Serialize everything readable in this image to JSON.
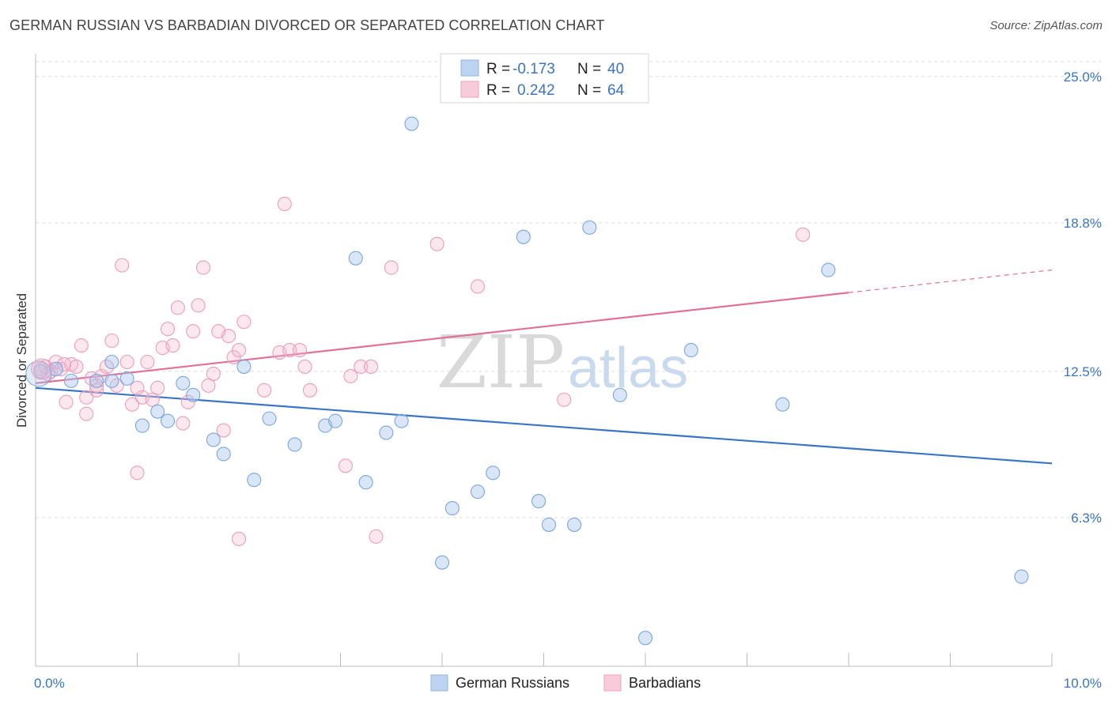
{
  "header": {
    "title": "GERMAN RUSSIAN VS BARBADIAN DIVORCED OR SEPARATED CORRELATION CHART",
    "source": "Source: ZipAtlas.com"
  },
  "watermark": {
    "zip": "ZIP",
    "atlas": "atlas"
  },
  "colors": {
    "blue": "#3a75c4",
    "blue_fill": "#a9c7ee",
    "pink": "#e0719a",
    "pink_fill": "#f4b9ce",
    "grid": "#dddddd"
  },
  "legend": {
    "rows": [
      {
        "r_label": "R =",
        "r_value": "-0.173",
        "n_label": "N =",
        "n_value": "40"
      },
      {
        "r_label": "R =",
        "r_value": "0.242",
        "n_label": "N =",
        "n_value": "64"
      }
    ]
  },
  "chart_data": {
    "type": "scatter",
    "title": "GERMAN RUSSIAN VS BARBADIAN DIVORCED OR SEPARATED CORRELATION CHART",
    "xlabel": "",
    "ylabel": "Divorced or Separated",
    "xlim": [
      0,
      10
    ],
    "ylim": [
      0,
      25.9
    ],
    "x_tick_labels": [
      "0.0%",
      "10.0%"
    ],
    "y_ticks": [
      6.3,
      12.5,
      18.8,
      25.0
    ],
    "y_tick_labels": [
      "6.3%",
      "12.5%",
      "18.8%",
      "25.0%"
    ],
    "grid": true,
    "legend_position": "top-center",
    "series": [
      {
        "name": "German Russians",
        "color": "#3a75c4",
        "trend": {
          "x": [
            0,
            10
          ],
          "y": [
            11.8,
            8.6
          ],
          "solid_until": 10
        },
        "points": [
          [
            0.35,
            12.1
          ],
          [
            0.6,
            12.1
          ],
          [
            0.75,
            12.1
          ],
          [
            0.75,
            12.9
          ],
          [
            0.9,
            12.2
          ],
          [
            1.05,
            10.2
          ],
          [
            1.2,
            10.8
          ],
          [
            1.3,
            10.4
          ],
          [
            1.45,
            12.0
          ],
          [
            1.55,
            11.5
          ],
          [
            1.75,
            9.6
          ],
          [
            1.85,
            9.0
          ],
          [
            2.05,
            12.7
          ],
          [
            2.15,
            7.9
          ],
          [
            2.3,
            10.5
          ],
          [
            2.55,
            9.4
          ],
          [
            2.85,
            10.2
          ],
          [
            2.95,
            10.4
          ],
          [
            3.15,
            17.3
          ],
          [
            3.25,
            7.8
          ],
          [
            3.45,
            9.9
          ],
          [
            3.6,
            10.4
          ],
          [
            3.7,
            23.0
          ],
          [
            4.0,
            4.4
          ],
          [
            4.1,
            6.7
          ],
          [
            4.35,
            7.4
          ],
          [
            4.5,
            8.2
          ],
          [
            4.8,
            18.2
          ],
          [
            4.95,
            7.0
          ],
          [
            5.05,
            6.0
          ],
          [
            5.3,
            6.0
          ],
          [
            5.45,
            18.6
          ],
          [
            5.75,
            11.5
          ],
          [
            6.0,
            1.2
          ],
          [
            6.45,
            13.4
          ],
          [
            7.35,
            11.1
          ],
          [
            7.8,
            16.8
          ],
          [
            9.7,
            3.8
          ],
          [
            0.05,
            12.5
          ],
          [
            0.2,
            12.6
          ]
        ]
      },
      {
        "name": "Barbadians",
        "color": "#e0719a",
        "trend": {
          "x": [
            0,
            10
          ],
          "y": [
            12.0,
            16.8
          ],
          "solid_until": 8.0
        },
        "points": [
          [
            0.05,
            12.6
          ],
          [
            0.1,
            12.7
          ],
          [
            0.15,
            12.5
          ],
          [
            0.2,
            12.9
          ],
          [
            0.25,
            12.6
          ],
          [
            0.3,
            11.2
          ],
          [
            0.35,
            12.8
          ],
          [
            0.4,
            12.7
          ],
          [
            0.45,
            13.6
          ],
          [
            0.5,
            10.7
          ],
          [
            0.5,
            11.4
          ],
          [
            0.55,
            12.2
          ],
          [
            0.6,
            11.9
          ],
          [
            0.65,
            12.3
          ],
          [
            0.7,
            12.7
          ],
          [
            0.75,
            13.8
          ],
          [
            0.8,
            11.9
          ],
          [
            0.85,
            17.0
          ],
          [
            0.9,
            12.9
          ],
          [
            0.95,
            11.1
          ],
          [
            1.0,
            11.8
          ],
          [
            1.05,
            11.4
          ],
          [
            1.1,
            12.9
          ],
          [
            1.15,
            11.3
          ],
          [
            1.2,
            11.8
          ],
          [
            1.25,
            13.5
          ],
          [
            1.3,
            14.3
          ],
          [
            1.35,
            13.6
          ],
          [
            1.4,
            15.2
          ],
          [
            1.45,
            10.3
          ],
          [
            1.5,
            11.2
          ],
          [
            1.55,
            14.2
          ],
          [
            1.6,
            15.3
          ],
          [
            1.65,
            16.9
          ],
          [
            1.7,
            11.9
          ],
          [
            1.75,
            12.4
          ],
          [
            1.8,
            14.2
          ],
          [
            1.85,
            10.0
          ],
          [
            1.9,
            14.0
          ],
          [
            1.95,
            13.1
          ],
          [
            2.0,
            13.4
          ],
          [
            2.05,
            14.6
          ],
          [
            2.25,
            11.7
          ],
          [
            2.4,
            13.3
          ],
          [
            2.45,
            19.6
          ],
          [
            2.5,
            13.4
          ],
          [
            2.6,
            13.4
          ],
          [
            2.65,
            12.7
          ],
          [
            2.7,
            11.7
          ],
          [
            3.05,
            8.5
          ],
          [
            3.1,
            12.3
          ],
          [
            3.2,
            12.7
          ],
          [
            3.3,
            12.7
          ],
          [
            3.35,
            5.5
          ],
          [
            3.5,
            16.9
          ],
          [
            3.95,
            17.9
          ],
          [
            4.35,
            16.1
          ],
          [
            5.2,
            11.3
          ],
          [
            7.55,
            18.3
          ],
          [
            1.0,
            8.2
          ],
          [
            2.0,
            5.4
          ],
          [
            0.12,
            12.4
          ],
          [
            0.28,
            12.8
          ],
          [
            0.6,
            11.7
          ]
        ]
      }
    ]
  },
  "bottom_legend": [
    "German Russians",
    "Barbadians"
  ]
}
